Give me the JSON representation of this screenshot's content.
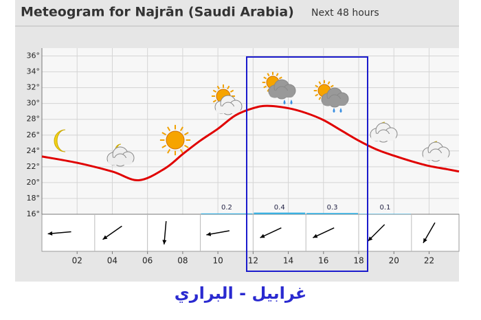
{
  "chart_data": {
    "type": "line",
    "title": "Meteogram for Najrān (Saudi Arabia)",
    "subtitle": "Next 48 hours",
    "annotation": "غرابيل - البراري",
    "xlim": [
      0,
      23.7
    ],
    "xticks": [
      {
        "value": 2,
        "label": "02"
      },
      {
        "value": 4,
        "label": "04"
      },
      {
        "value": 6,
        "label": "06"
      },
      {
        "value": 8,
        "label": "08"
      },
      {
        "value": 10,
        "label": "10"
      },
      {
        "value": 12,
        "label": "12"
      },
      {
        "value": 14,
        "label": "14"
      },
      {
        "value": 16,
        "label": "16"
      },
      {
        "value": 18,
        "label": "18"
      },
      {
        "value": 20,
        "label": "20"
      },
      {
        "value": 22,
        "label": "22"
      }
    ],
    "ylim": [
      16,
      37
    ],
    "yticks": [
      {
        "value": 16,
        "label": "16°"
      },
      {
        "value": 18,
        "label": "18°"
      },
      {
        "value": 20,
        "label": "20°"
      },
      {
        "value": 22,
        "label": "22°"
      },
      {
        "value": 24,
        "label": "24°"
      },
      {
        "value": 26,
        "label": "26°"
      },
      {
        "value": 28,
        "label": "28°"
      },
      {
        "value": 30,
        "label": "30°"
      },
      {
        "value": 32,
        "label": "32°"
      },
      {
        "value": 34,
        "label": "34°"
      },
      {
        "value": 36,
        "label": "36°"
      }
    ],
    "grid": true,
    "series": [
      {
        "name": "Temperature",
        "color": "#e00000",
        "x": [
          0,
          2,
          4,
          5.5,
          7,
          8,
          9,
          10,
          11,
          12,
          12.8,
          14,
          15,
          16,
          17,
          18,
          19,
          20,
          21,
          22,
          23,
          23.7
        ],
        "values": [
          23.3,
          22.5,
          21.4,
          20.3,
          21.8,
          23.6,
          25.3,
          26.8,
          28.5,
          29.4,
          29.7,
          29.4,
          28.8,
          27.9,
          26.6,
          25.3,
          24.2,
          23.4,
          22.7,
          22.1,
          21.7,
          21.4
        ]
      }
    ],
    "precipitation": {
      "color": "#3ab0e0",
      "start": [
        9,
        12,
        15,
        18
      ],
      "end": [
        12,
        15,
        18,
        21
      ],
      "values": [
        0.2,
        0.4,
        0.3,
        0.1
      ]
    },
    "wind": {
      "color": "#000000",
      "x": [
        1,
        4,
        7,
        10,
        13,
        16,
        19,
        22
      ],
      "direction": [
        265,
        235,
        185,
        260,
        245,
        245,
        225,
        210
      ]
    }
  }
}
